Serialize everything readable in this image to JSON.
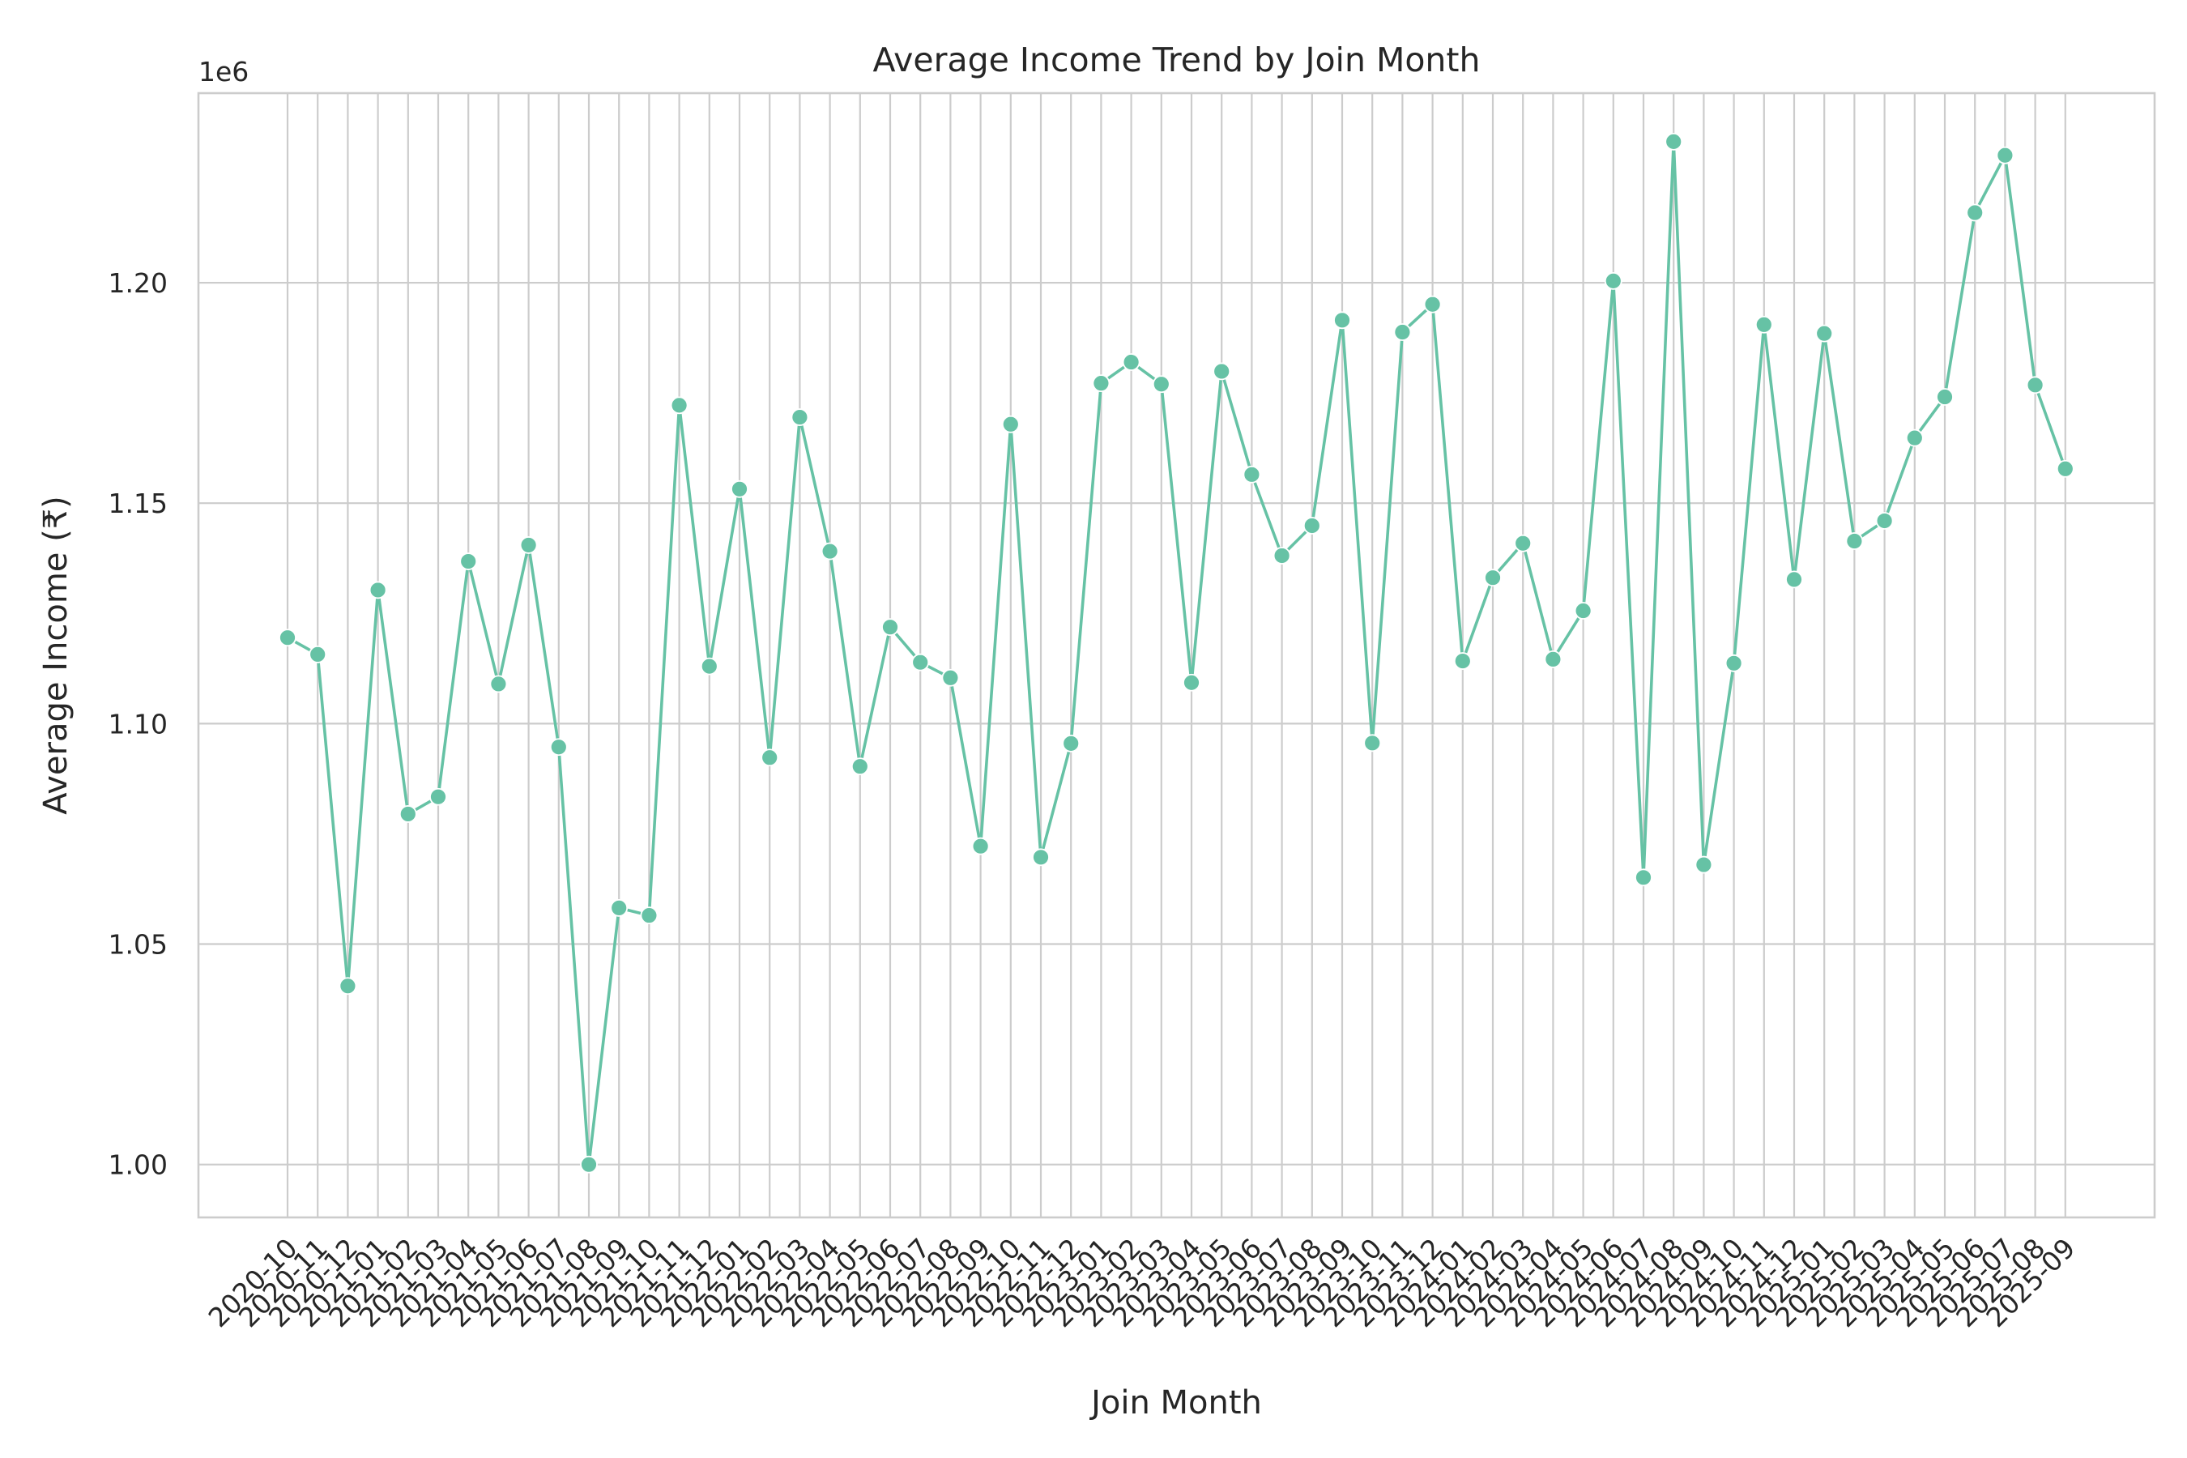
{
  "chart_data": {
    "type": "line",
    "title": "Average Income Trend by Join Month",
    "xlabel": "Join Month",
    "ylabel": "Average Income (₹)",
    "offset_label": "1e6",
    "ylim": [
      0.988,
      1.243
    ],
    "yticks": [
      1.0,
      1.05,
      1.1,
      1.15,
      1.2
    ],
    "ytick_labels": [
      "1.00",
      "1.05",
      "1.10",
      "1.15",
      "1.20"
    ],
    "grid": true,
    "line_color": "#66c2a5",
    "categories": [
      "2020-10",
      "2020-11",
      "2020-12",
      "2021-01",
      "2021-02",
      "2021-03",
      "2021-04",
      "2021-05",
      "2021-06",
      "2021-07",
      "2021-08",
      "2021-09",
      "2021-10",
      "2021-11",
      "2021-12",
      "2022-01",
      "2022-02",
      "2022-03",
      "2022-04",
      "2022-05",
      "2022-06",
      "2022-07",
      "2022-08",
      "2022-09",
      "2022-10",
      "2022-11",
      "2022-12",
      "2023-01",
      "2023-02",
      "2023-03",
      "2023-04",
      "2023-05",
      "2023-06",
      "2023-07",
      "2023-08",
      "2023-09",
      "2023-10",
      "2023-11",
      "2023-12",
      "2024-01",
      "2024-02",
      "2024-03",
      "2024-04",
      "2024-05",
      "2024-06",
      "2024-07",
      "2024-08",
      "2024-09",
      "2024-10",
      "2024-11",
      "2024-12",
      "2025-01",
      "2025-02",
      "2025-03",
      "2025-04",
      "2025-05",
      "2025-06",
      "2025-07",
      "2025-08",
      "2025-09"
    ],
    "values": [
      1.1195,
      1.1157,
      1.0405,
      1.1303,
      1.0795,
      1.0834,
      1.1368,
      1.109,
      1.1405,
      1.0947,
      1.0,
      1.0582,
      1.0565,
      1.1722,
      1.113,
      1.1532,
      1.0923,
      1.1695,
      1.1391,
      1.0903,
      1.1219,
      1.1139,
      1.1104,
      1.0722,
      1.1679,
      1.0697,
      1.0955,
      1.1772,
      1.182,
      1.177,
      1.1093,
      1.1799,
      1.1565,
      1.1381,
      1.1449,
      1.1915,
      1.0956,
      1.1888,
      1.1951,
      1.1142,
      1.1331,
      1.1409,
      1.1146,
      1.1256,
      1.2004,
      1.0651,
      1.232,
      1.068,
      1.1137,
      1.1905,
      1.1327,
      1.1885,
      1.1414,
      1.146,
      1.1648,
      1.1741,
      1.2159,
      1.2289,
      1.1768,
      1.1578
    ]
  }
}
